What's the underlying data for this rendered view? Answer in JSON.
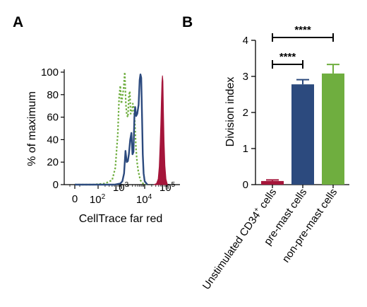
{
  "chart_data": [
    {
      "panel": "A",
      "type": "line",
      "xlabel": "CellTrace far red",
      "ylabel": "% of maximum",
      "xscale": "log",
      "xticks": [
        {
          "value": 0,
          "label": "0"
        },
        {
          "value": 100,
          "label": "10",
          "sup": "2"
        },
        {
          "value": 1000,
          "label": "10",
          "sup": "3"
        },
        {
          "value": 10000,
          "label": "10",
          "sup": "4"
        },
        {
          "value": 100000,
          "label": "10",
          "sup": "5"
        }
      ],
      "yticks": [
        0,
        20,
        40,
        60,
        80,
        100
      ],
      "ylim": [
        0,
        100
      ],
      "series": [
        {
          "style": "dotted-line",
          "color": "#6fae3f",
          "points": [
            [
              10,
              0
            ],
            [
              60,
              0
            ],
            [
              200,
              1
            ],
            [
              400,
              4
            ],
            [
              550,
              15
            ],
            [
              700,
              45
            ],
            [
              800,
              78
            ],
            [
              900,
              88
            ],
            [
              1000,
              72
            ],
            [
              1100,
              78
            ],
            [
              1250,
              86
            ],
            [
              1400,
              100
            ],
            [
              1550,
              72
            ],
            [
              1700,
              62
            ],
            [
              1900,
              60
            ],
            [
              2100,
              79
            ],
            [
              2300,
              83
            ],
            [
              2500,
              63
            ],
            [
              2800,
              64
            ],
            [
              3100,
              72
            ],
            [
              3400,
              68
            ],
            [
              3800,
              55
            ],
            [
              4200,
              33
            ],
            [
              4700,
              20
            ],
            [
              5300,
              12
            ],
            [
              6500,
              4
            ],
            [
              8500,
              1
            ],
            [
              12000,
              0
            ]
          ]
        },
        {
          "style": "solid-line",
          "color": "#2c4a7e",
          "points": [
            [
              10,
              0
            ],
            [
              500,
              0
            ],
            [
              900,
              1
            ],
            [
              1100,
              3
            ],
            [
              1300,
              10
            ],
            [
              1500,
              30
            ],
            [
              1700,
              20
            ],
            [
              1900,
              21
            ],
            [
              2100,
              27
            ],
            [
              2400,
              40
            ],
            [
              2700,
              46
            ],
            [
              3000,
              27
            ],
            [
              3300,
              29
            ],
            [
              3600,
              60
            ],
            [
              3900,
              69
            ],
            [
              4300,
              61
            ],
            [
              4800,
              63
            ],
            [
              5500,
              71
            ],
            [
              6100,
              93
            ],
            [
              6600,
              98
            ],
            [
              7100,
              95
            ],
            [
              7700,
              59
            ],
            [
              8300,
              27
            ],
            [
              9000,
              10
            ],
            [
              10000,
              3
            ],
            [
              13000,
              0
            ]
          ]
        },
        {
          "style": "filled",
          "color": "#a5153a",
          "points": [
            [
              25000,
              0
            ],
            [
              32000,
              1
            ],
            [
              38000,
              5
            ],
            [
              42000,
              16
            ],
            [
              46000,
              37
            ],
            [
              49000,
              54
            ],
            [
              52000,
              74
            ],
            [
              55000,
              91
            ],
            [
              58000,
              97
            ],
            [
              61000,
              92
            ],
            [
              64000,
              66
            ],
            [
              68000,
              39
            ],
            [
              74000,
              17
            ],
            [
              82000,
              5
            ],
            [
              95000,
              0
            ]
          ]
        }
      ]
    },
    {
      "panel": "B",
      "type": "bar",
      "ylabel": "Division index",
      "ylim": [
        0,
        4
      ],
      "yticks": [
        0,
        1,
        2,
        3,
        4
      ],
      "categories": [
        {
          "label": "Unstimulated CD34",
          "sup": "+",
          "suffix": " cells"
        },
        {
          "label": "pre-mast cells",
          "sup": "",
          "suffix": ""
        },
        {
          "label": "non-pre-mast cells",
          "sup": "",
          "suffix": ""
        }
      ],
      "values": [
        0.1,
        2.78,
        3.08
      ],
      "errors": [
        0.03,
        0.13,
        0.25
      ],
      "colors": [
        "#a5153a",
        "#2c4a7e",
        "#6fae3f"
      ],
      "significance": [
        {
          "from": 1,
          "to": 2,
          "label": "****"
        },
        {
          "from": 1,
          "to": 3,
          "label": "****"
        }
      ]
    }
  ]
}
